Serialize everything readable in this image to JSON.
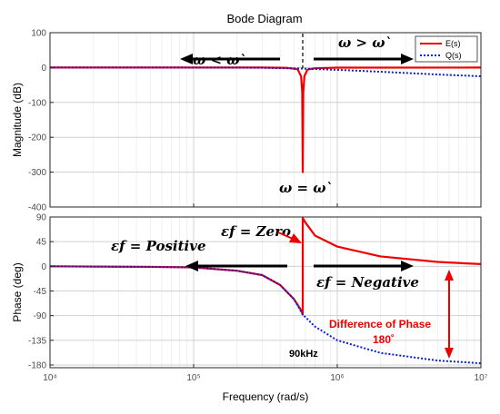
{
  "chart_data": [
    {
      "type": "line",
      "title": "Bode Diagram",
      "ylabel": "Magnitude (dB)",
      "xscale": "log",
      "xlim": [
        10000,
        10000000
      ],
      "ylim": [
        -400,
        100
      ],
      "yticks": [
        -400,
        -300,
        -200,
        -100,
        0,
        100
      ],
      "legend": {
        "position": "top-right",
        "entries": [
          "E(s)",
          "Q(s)"
        ]
      },
      "series": [
        {
          "name": "E(s)",
          "color": "#ee0000",
          "style": "solid",
          "x": [
            10000,
            100000,
            300000,
            450000,
            530000,
            560000,
            570000,
            575000,
            580000,
            590000,
            620000,
            700000,
            1000000,
            10000000
          ],
          "y": [
            0,
            0,
            0,
            -1,
            -5,
            -25,
            -70,
            -300,
            -70,
            -25,
            -6,
            -2,
            -0.3,
            0
          ]
        },
        {
          "name": "Q(s)",
          "color": "#0a1ee6",
          "style": "dotted",
          "x": [
            10000,
            100000,
            300000,
            570000,
            1000000,
            2000000,
            5000000,
            10000000
          ],
          "y": [
            0,
            -0.1,
            -0.5,
            -3,
            -6.5,
            -12,
            -20,
            -25
          ]
        }
      ],
      "annotations": {
        "left": "ω < ω`",
        "right": "ω > ω`",
        "bottom": "ω = ω`"
      }
    },
    {
      "type": "line",
      "ylabel": "Phase (deg)",
      "xlabel": "Frequency  (rad/s)",
      "xscale": "log",
      "xlim": [
        10000,
        10000000
      ],
      "ylim": [
        -185,
        90
      ],
      "yticks": [
        -180,
        -135,
        -90,
        -45,
        0,
        45,
        90
      ],
      "xticks": [
        "10⁴",
        "10⁵",
        "10⁶",
        "10⁷"
      ],
      "series": [
        {
          "name": "E(s)",
          "color": "#ee0000",
          "style": "solid",
          "x": [
            10000,
            50000,
            100000,
            200000,
            300000,
            400000,
            500000,
            560000,
            575000,
            575000,
            600000,
            700000,
            1000000,
            2000000,
            5000000,
            10000000
          ],
          "y": [
            0,
            -1,
            -2,
            -8,
            -16,
            -34,
            -60,
            -80,
            -88,
            88,
            80,
            56,
            36,
            18,
            8,
            4
          ]
        },
        {
          "name": "Q(s)",
          "color": "#0a1ee6",
          "style": "dotted",
          "x": [
            10000,
            50000,
            100000,
            200000,
            300000,
            400000,
            500000,
            575000,
            700000,
            1000000,
            2000000,
            5000000,
            10000000
          ],
          "y": [
            0,
            -1,
            -2,
            -8,
            -16,
            -34,
            -60,
            -88,
            -110,
            -135,
            -158,
            -172,
            -177
          ]
        }
      ],
      "annotations": {
        "zero": "εf = Zero",
        "positive": "εf = Positive",
        "negative": "εf = Negative",
        "freq_note": "90kHz",
        "diff_line1": "Difference of Phase",
        "diff_line2": "180˚"
      }
    }
  ]
}
